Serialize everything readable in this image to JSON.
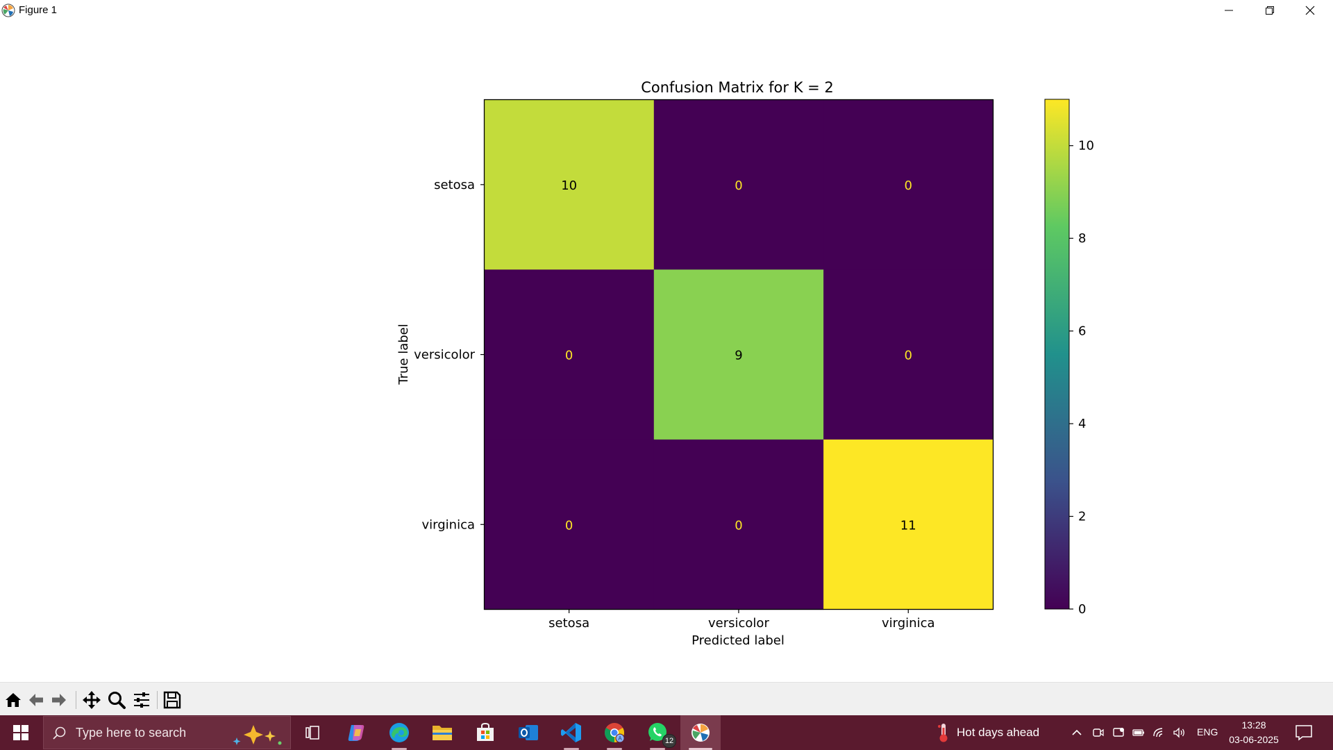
{
  "window": {
    "title": "Figure 1",
    "icon": "matplotlib-icon",
    "controls": [
      "minimize-icon",
      "maximize-icon",
      "close-icon"
    ]
  },
  "chart_data": {
    "type": "heatmap",
    "title": "Confusion Matrix for K = 2",
    "xlabel": "Predicted label",
    "ylabel": "True label",
    "x_categories": [
      "setosa",
      "versicolor",
      "virginica"
    ],
    "y_categories": [
      "setosa",
      "versicolor",
      "virginica"
    ],
    "values": [
      [
        10,
        0,
        0
      ],
      [
        0,
        9,
        0
      ],
      [
        0,
        0,
        11
      ]
    ],
    "colormap": "viridis",
    "colorbar": {
      "range": [
        0,
        11
      ],
      "ticks": [
        "0",
        "2",
        "4",
        "6",
        "8",
        "10"
      ]
    },
    "cell_text_colors": {
      "low": "#fde725",
      "high": "#000000"
    },
    "grid": false
  },
  "toolbar": {
    "buttons": [
      "home-icon",
      "back-icon",
      "forward-icon",
      "pan-icon",
      "zoom-icon",
      "configure-subplots-icon",
      "save-icon"
    ]
  },
  "taskbar": {
    "search_placeholder": "Type here to search",
    "apps": [
      "task-view-icon",
      "copilot-icon",
      "edge-icon",
      "file-explorer-icon",
      "microsoft-store-icon",
      "outlook-icon",
      "vscode-icon",
      "chrome-icon",
      "whatsapp-icon",
      "matplotlib-figure-icon"
    ],
    "whatsapp_badge": "12",
    "weather_text": "Hot days ahead",
    "language": "ENG",
    "time": "13:28",
    "date": "03-06-2025",
    "colors": {
      "taskbar": "#5a1a2e",
      "search": "#6b2c3e"
    }
  }
}
